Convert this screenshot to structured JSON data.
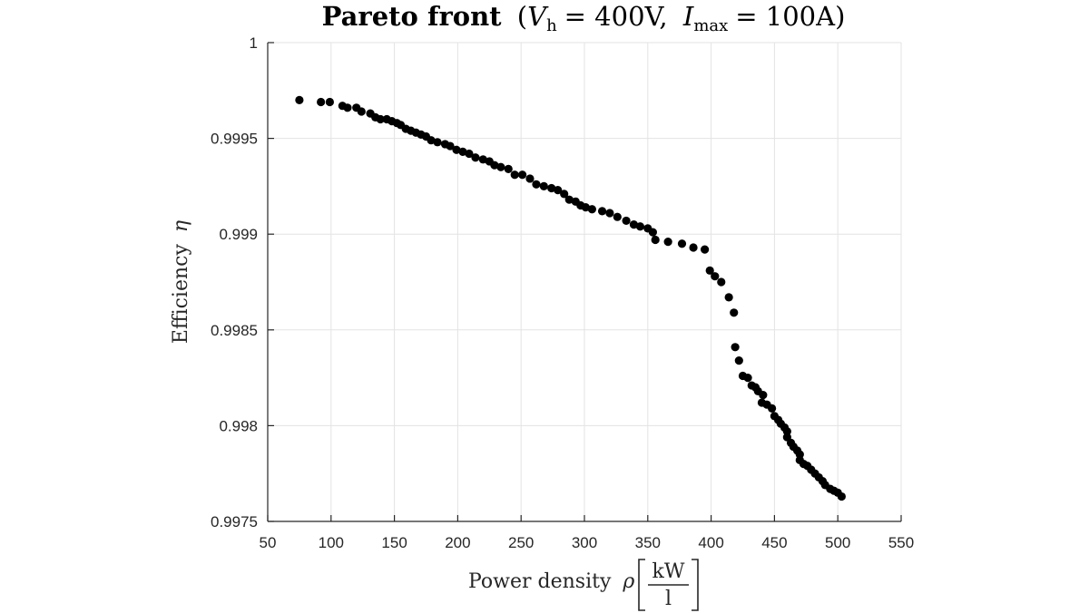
{
  "chart_data": {
    "type": "scatter",
    "title": {
      "bold": "Pareto front",
      "open": "(",
      "v_symbol": "V",
      "v_sub": "h",
      "v_eq": "= 400V,",
      "i_symbol": "I",
      "i_sub": "max",
      "i_eq": "= 100A)"
    },
    "xlabel": {
      "text": "Power density",
      "symbol": "ρ",
      "unit_num": "kW",
      "unit_den": "l"
    },
    "ylabel": {
      "text": "Efficiency",
      "symbol": "η"
    },
    "xlim": [
      50,
      550
    ],
    "ylim": [
      0.9975,
      1
    ],
    "xticks": [
      50,
      100,
      150,
      200,
      250,
      300,
      350,
      400,
      450,
      500,
      550
    ],
    "yticks": [
      0.9975,
      0.998,
      0.9985,
      0.999,
      0.9995,
      1
    ],
    "xtick_labels": [
      "50",
      "100",
      "150",
      "200",
      "250",
      "300",
      "350",
      "400",
      "450",
      "500",
      "550"
    ],
    "ytick_labels": [
      "0.9975",
      "0.998",
      "0.9985",
      "0.999",
      "0.9995",
      "1"
    ],
    "grid": true,
    "marker_color": "#000000",
    "points": [
      [
        75,
        0.9997
      ],
      [
        92,
        0.99969
      ],
      [
        99,
        0.99969
      ],
      [
        109,
        0.99967
      ],
      [
        113,
        0.99966
      ],
      [
        120,
        0.99966
      ],
      [
        124,
        0.99964
      ],
      [
        131,
        0.99963
      ],
      [
        135,
        0.99961
      ],
      [
        139,
        0.9996
      ],
      [
        144,
        0.9996
      ],
      [
        148,
        0.99959
      ],
      [
        152,
        0.99958
      ],
      [
        155,
        0.99957
      ],
      [
        159,
        0.99955
      ],
      [
        163,
        0.99954
      ],
      [
        167,
        0.99953
      ],
      [
        171,
        0.99952
      ],
      [
        175,
        0.99951
      ],
      [
        179,
        0.99949
      ],
      [
        184,
        0.99948
      ],
      [
        190,
        0.99947
      ],
      [
        194,
        0.99946
      ],
      [
        199,
        0.99944
      ],
      [
        204,
        0.99943
      ],
      [
        209,
        0.99942
      ],
      [
        214,
        0.9994
      ],
      [
        220,
        0.99939
      ],
      [
        225,
        0.99938
      ],
      [
        229,
        0.99936
      ],
      [
        234,
        0.99935
      ],
      [
        240,
        0.99934
      ],
      [
        245,
        0.99931
      ],
      [
        251,
        0.99931
      ],
      [
        257,
        0.99929
      ],
      [
        262,
        0.99926
      ],
      [
        268,
        0.99925
      ],
      [
        274,
        0.99924
      ],
      [
        279,
        0.99923
      ],
      [
        284,
        0.99921
      ],
      [
        288,
        0.99918
      ],
      [
        293,
        0.99917
      ],
      [
        297,
        0.99915
      ],
      [
        301,
        0.99914
      ],
      [
        306,
        0.99913
      ],
      [
        314,
        0.99912
      ],
      [
        320,
        0.99911
      ],
      [
        326,
        0.99909
      ],
      [
        333,
        0.99907
      ],
      [
        339,
        0.99905
      ],
      [
        344,
        0.99904
      ],
      [
        350,
        0.99903
      ],
      [
        354,
        0.99901
      ],
      [
        356,
        0.99897
      ],
      [
        366,
        0.99896
      ],
      [
        377,
        0.99895
      ],
      [
        386,
        0.99893
      ],
      [
        395,
        0.99892
      ],
      [
        399,
        0.99881
      ],
      [
        403,
        0.99878
      ],
      [
        408,
        0.99875
      ],
      [
        414,
        0.99867
      ],
      [
        418,
        0.99859
      ],
      [
        419,
        0.99841
      ],
      [
        422,
        0.99834
      ],
      [
        425,
        0.99826
      ],
      [
        429,
        0.99825
      ],
      [
        432,
        0.99821
      ],
      [
        435,
        0.9982
      ],
      [
        437,
        0.99818
      ],
      [
        441,
        0.99816
      ],
      [
        440,
        0.99812
      ],
      [
        444,
        0.99811
      ],
      [
        448,
        0.99809
      ],
      [
        450,
        0.99805
      ],
      [
        453,
        0.99803
      ],
      [
        455,
        0.99801
      ],
      [
        458,
        0.99799
      ],
      [
        460,
        0.99797
      ],
      [
        460,
        0.99794
      ],
      [
        463,
        0.99791
      ],
      [
        465,
        0.99789
      ],
      [
        468,
        0.99787
      ],
      [
        470,
        0.99785
      ],
      [
        470,
        0.99782
      ],
      [
        473,
        0.9978
      ],
      [
        476,
        0.99779
      ],
      [
        479,
        0.99777
      ],
      [
        482,
        0.99775
      ],
      [
        485,
        0.99773
      ],
      [
        488,
        0.99771
      ],
      [
        490,
        0.99769
      ],
      [
        494,
        0.99767
      ],
      [
        497,
        0.99766
      ],
      [
        500,
        0.99765
      ],
      [
        503,
        0.99763
      ]
    ]
  }
}
